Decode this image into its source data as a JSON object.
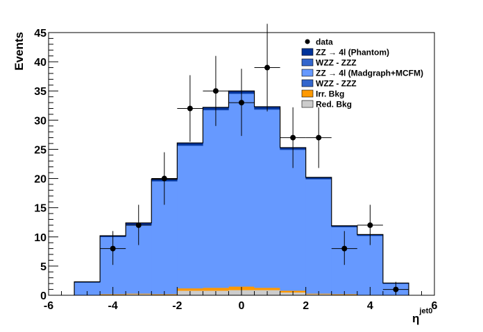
{
  "chart_data": {
    "type": "bar",
    "title": "",
    "xlabel": "η",
    "xlabel_superscript": "jet0",
    "ylabel": "Events",
    "xlim": [
      -6,
      6
    ],
    "ylim": [
      0,
      45
    ],
    "xticks": [
      -6,
      -4,
      -2,
      0,
      2,
      4,
      6
    ],
    "yticks": [
      0,
      5,
      10,
      15,
      20,
      25,
      30,
      35,
      40,
      45
    ],
    "grid": false,
    "legend_position": "top-right",
    "bin_edges": [
      -5.2,
      -4.4,
      -3.6,
      -2.8,
      -2.0,
      -1.2,
      -0.4,
      0.4,
      1.2,
      2.0,
      2.8,
      3.6,
      4.4,
      5.2
    ],
    "series": [
      {
        "name": "Red. Bkg",
        "color": "#cccccc",
        "values": [
          0,
          0.1,
          0.2,
          0.1,
          0.8,
          0.8,
          0.9,
          0.9,
          0.5,
          0.2,
          0.1,
          0.1,
          0
        ]
      },
      {
        "name": "Irr. Bkg",
        "color": "#ff9900",
        "values": [
          0,
          0.1,
          0.1,
          0.1,
          0.4,
          0.5,
          0.6,
          0.4,
          0.3,
          0.1,
          0.1,
          0,
          0
        ]
      },
      {
        "name": "WZZ - ZZZ",
        "color": "#3366cc",
        "values": [
          0,
          0,
          0,
          0,
          0,
          0,
          0,
          0,
          0,
          0,
          0,
          0,
          0
        ]
      },
      {
        "name": "ZZ → 4l (Madgraph+MCFM)",
        "color": "#6699ff",
        "values": [
          2.2,
          9.8,
          11.8,
          19.3,
          24.4,
          30.4,
          33.0,
          30.5,
          24.1,
          19.6,
          11.5,
          10.1,
          2.0
        ]
      },
      {
        "name": "WZZ - ZZZ",
        "color": "#3366cc",
        "values": [
          0,
          0,
          0,
          0.1,
          0.1,
          0.1,
          0.1,
          0.1,
          0.1,
          0,
          0,
          0,
          0
        ]
      },
      {
        "name": "ZZ → 4l (Phantom)",
        "color": "#003399",
        "values": [
          0.1,
          0.2,
          0.3,
          0.3,
          0.4,
          0.4,
          0.4,
          0.4,
          0.3,
          0.3,
          0.2,
          0.2,
          0.1
        ]
      }
    ],
    "data_points": {
      "name": "data",
      "points": [
        {
          "x": -4.0,
          "y": 8,
          "xerr": 0.4,
          "yerr_low": 2.8,
          "yerr_high": 3.0
        },
        {
          "x": -3.2,
          "y": 12,
          "xerr": 0.4,
          "yerr_low": 3.4,
          "yerr_high": 3.5
        },
        {
          "x": -2.4,
          "y": 20,
          "xerr": 0.4,
          "yerr_low": 4.5,
          "yerr_high": 4.5
        },
        {
          "x": -1.6,
          "y": 32,
          "xerr": 0.4,
          "yerr_low": 5.7,
          "yerr_high": 5.7
        },
        {
          "x": -0.8,
          "y": 35,
          "xerr": 0.4,
          "yerr_low": 6.0,
          "yerr_high": 6.0
        },
        {
          "x": 0.0,
          "y": 33,
          "xerr": 0.4,
          "yerr_low": 5.7,
          "yerr_high": 5.8
        },
        {
          "x": 0.8,
          "y": 39,
          "xerr": 0.4,
          "yerr_low": 7.5,
          "yerr_high": 7.5
        },
        {
          "x": 1.6,
          "y": 27,
          "xerr": 0.4,
          "yerr_low": 5.2,
          "yerr_high": 5.2
        },
        {
          "x": 2.4,
          "y": 27,
          "xerr": 0.4,
          "yerr_low": 5.2,
          "yerr_high": 5.2
        },
        {
          "x": 3.2,
          "y": 8,
          "xerr": 0.4,
          "yerr_low": 2.8,
          "yerr_high": 3.0
        },
        {
          "x": 4.0,
          "y": 12,
          "xerr": 0.4,
          "yerr_low": 3.4,
          "yerr_high": 3.5
        },
        {
          "x": 4.8,
          "y": 1,
          "xerr": 0.4,
          "yerr_low": 0.8,
          "yerr_high": 1.3
        }
      ]
    },
    "legend": [
      {
        "label": "data",
        "marker": "point",
        "color": "#000000"
      },
      {
        "label": "ZZ → 4l (Phantom)",
        "marker": "box",
        "color": "#003399"
      },
      {
        "label": "WZZ - ZZZ",
        "marker": "box",
        "color": "#3366cc"
      },
      {
        "label": "ZZ → 4l (Madgraph+MCFM)",
        "marker": "box",
        "color": "#6699ff"
      },
      {
        "label": "WZZ - ZZZ",
        "marker": "box",
        "color": "#3366cc"
      },
      {
        "label": "Irr. Bkg",
        "marker": "box",
        "color": "#ff9900"
      },
      {
        "label": "Red. Bkg",
        "marker": "box",
        "color": "#cccccc"
      }
    ]
  }
}
